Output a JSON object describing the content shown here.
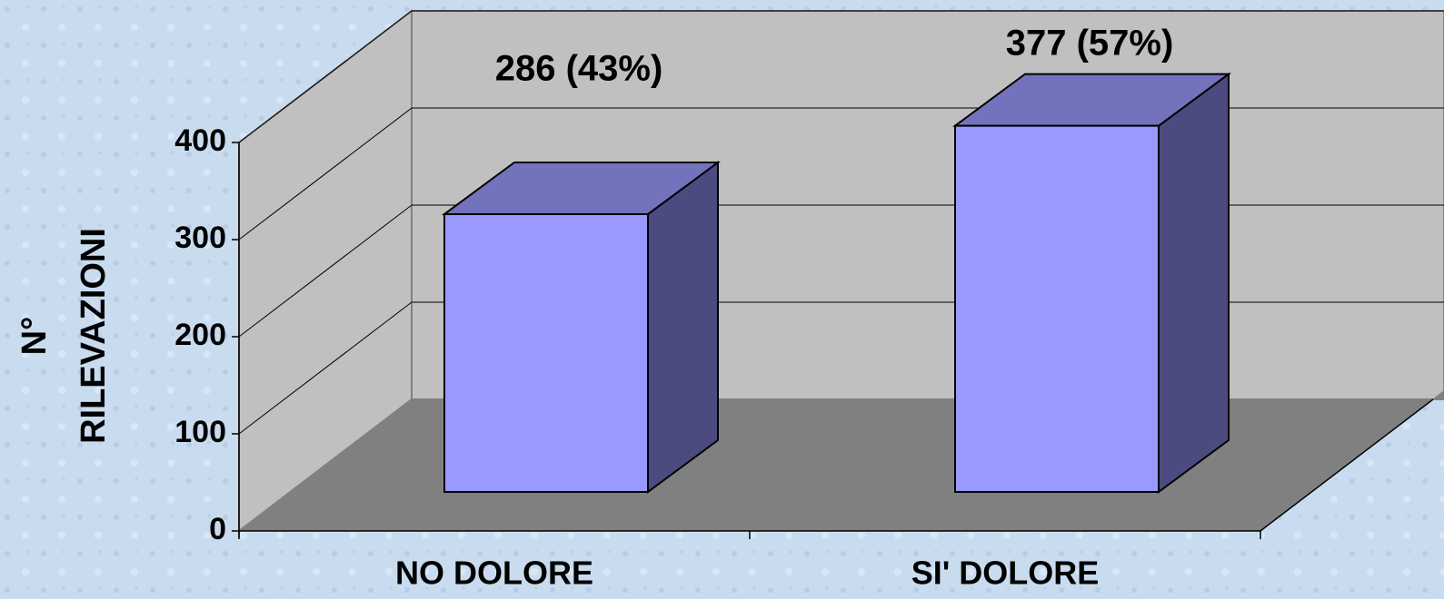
{
  "chart_data": {
    "type": "bar3d",
    "ylabel": [
      "N°",
      "RILEVAZIONI"
    ],
    "categories": [
      "NO DOLORE",
      "SI' DOLORE"
    ],
    "values": [
      286,
      377
    ],
    "value_labels": [
      "286 (43%)",
      "377 (57%)"
    ],
    "ylim": [
      0,
      400
    ],
    "yticks": [
      0,
      100,
      200,
      300,
      400
    ],
    "grid": true,
    "color": "#9999ff"
  }
}
